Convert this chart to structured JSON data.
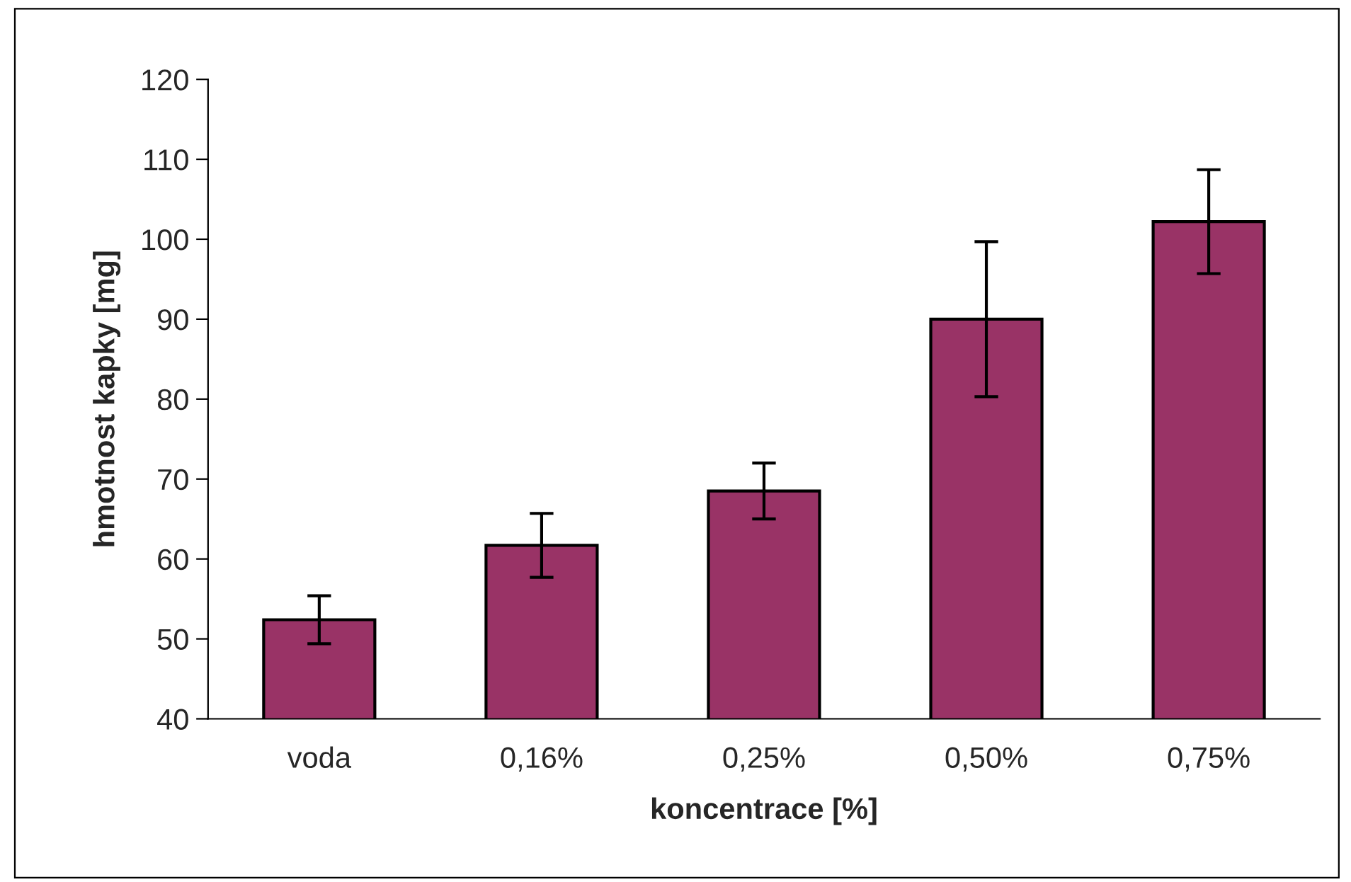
{
  "chart_data": {
    "type": "bar",
    "xlabel": "koncentrace [%]",
    "ylabel": "hmotnost kapky [mg]",
    "categories": [
      "voda",
      "0,16%",
      "0,25%",
      "0,50%",
      "0,75%"
    ],
    "series": [
      {
        "color": "#993366",
        "values": [
          52.4,
          61.7,
          68.5,
          90.0,
          102.2
        ],
        "errors": [
          3.0,
          4.0,
          3.5,
          9.7,
          6.5
        ]
      }
    ],
    "ylim": [
      40,
      120
    ],
    "yticks": [
      40,
      50,
      60,
      70,
      80,
      90,
      100,
      110,
      120
    ],
    "grid": false,
    "legend": false
  }
}
